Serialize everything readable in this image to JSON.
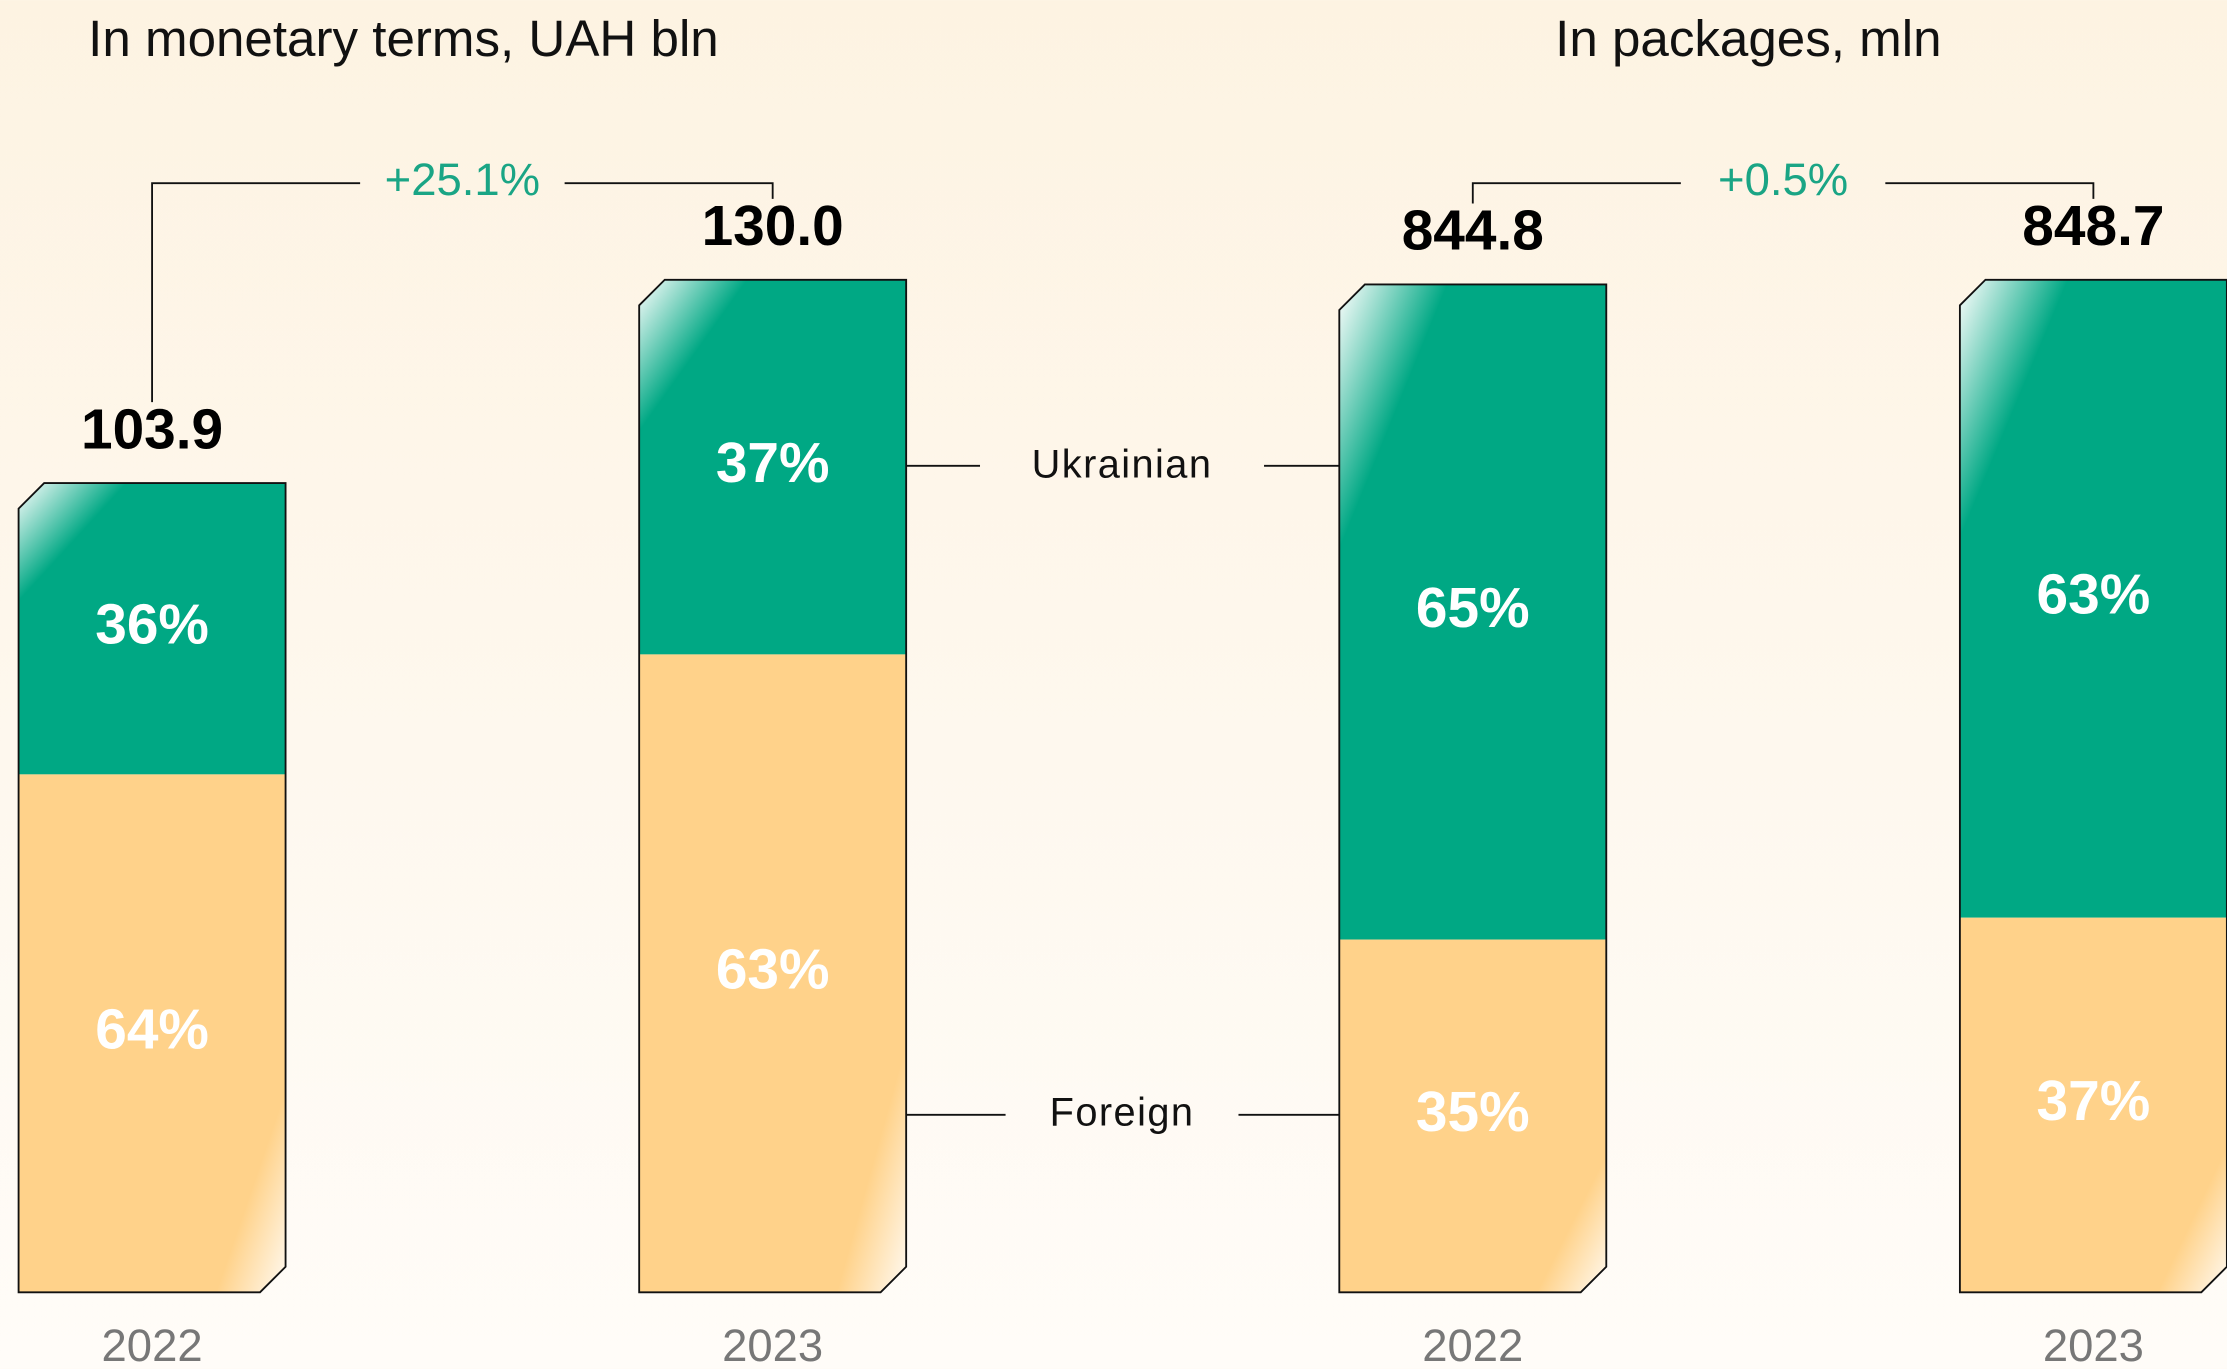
{
  "chart_data": [
    {
      "type": "bar",
      "title": "In monetary terms, UAH bln",
      "categories": [
        "2022",
        "2023"
      ],
      "values": [
        103.9,
        130.0
      ],
      "value_labels": [
        "103.9",
        "130.0"
      ],
      "change": "+25.1%",
      "series": [
        {
          "name": "Ukrainian",
          "color": "#00a884",
          "values": [
            36,
            37
          ],
          "value_labels": [
            "36%",
            "37%"
          ]
        },
        {
          "name": "Foreign",
          "color": "#ffd28a",
          "values": [
            64,
            63
          ],
          "value_labels": [
            "64%",
            "63%"
          ]
        }
      ]
    },
    {
      "type": "bar",
      "title": "In packages, mln",
      "categories": [
        "2022",
        "2023"
      ],
      "values": [
        844.8,
        848.7
      ],
      "value_labels": [
        "844.8",
        "848.7"
      ],
      "change": "+0.5%",
      "series": [
        {
          "color": "#00a884",
          "values": [
            65,
            63
          ],
          "value_labels": [
            "65%",
            "63%"
          ]
        },
        {
          "color": "#ffd28a",
          "values": [
            35,
            37
          ],
          "value_labels": [
            "35%",
            "37%"
          ]
        }
      ]
    }
  ]
}
